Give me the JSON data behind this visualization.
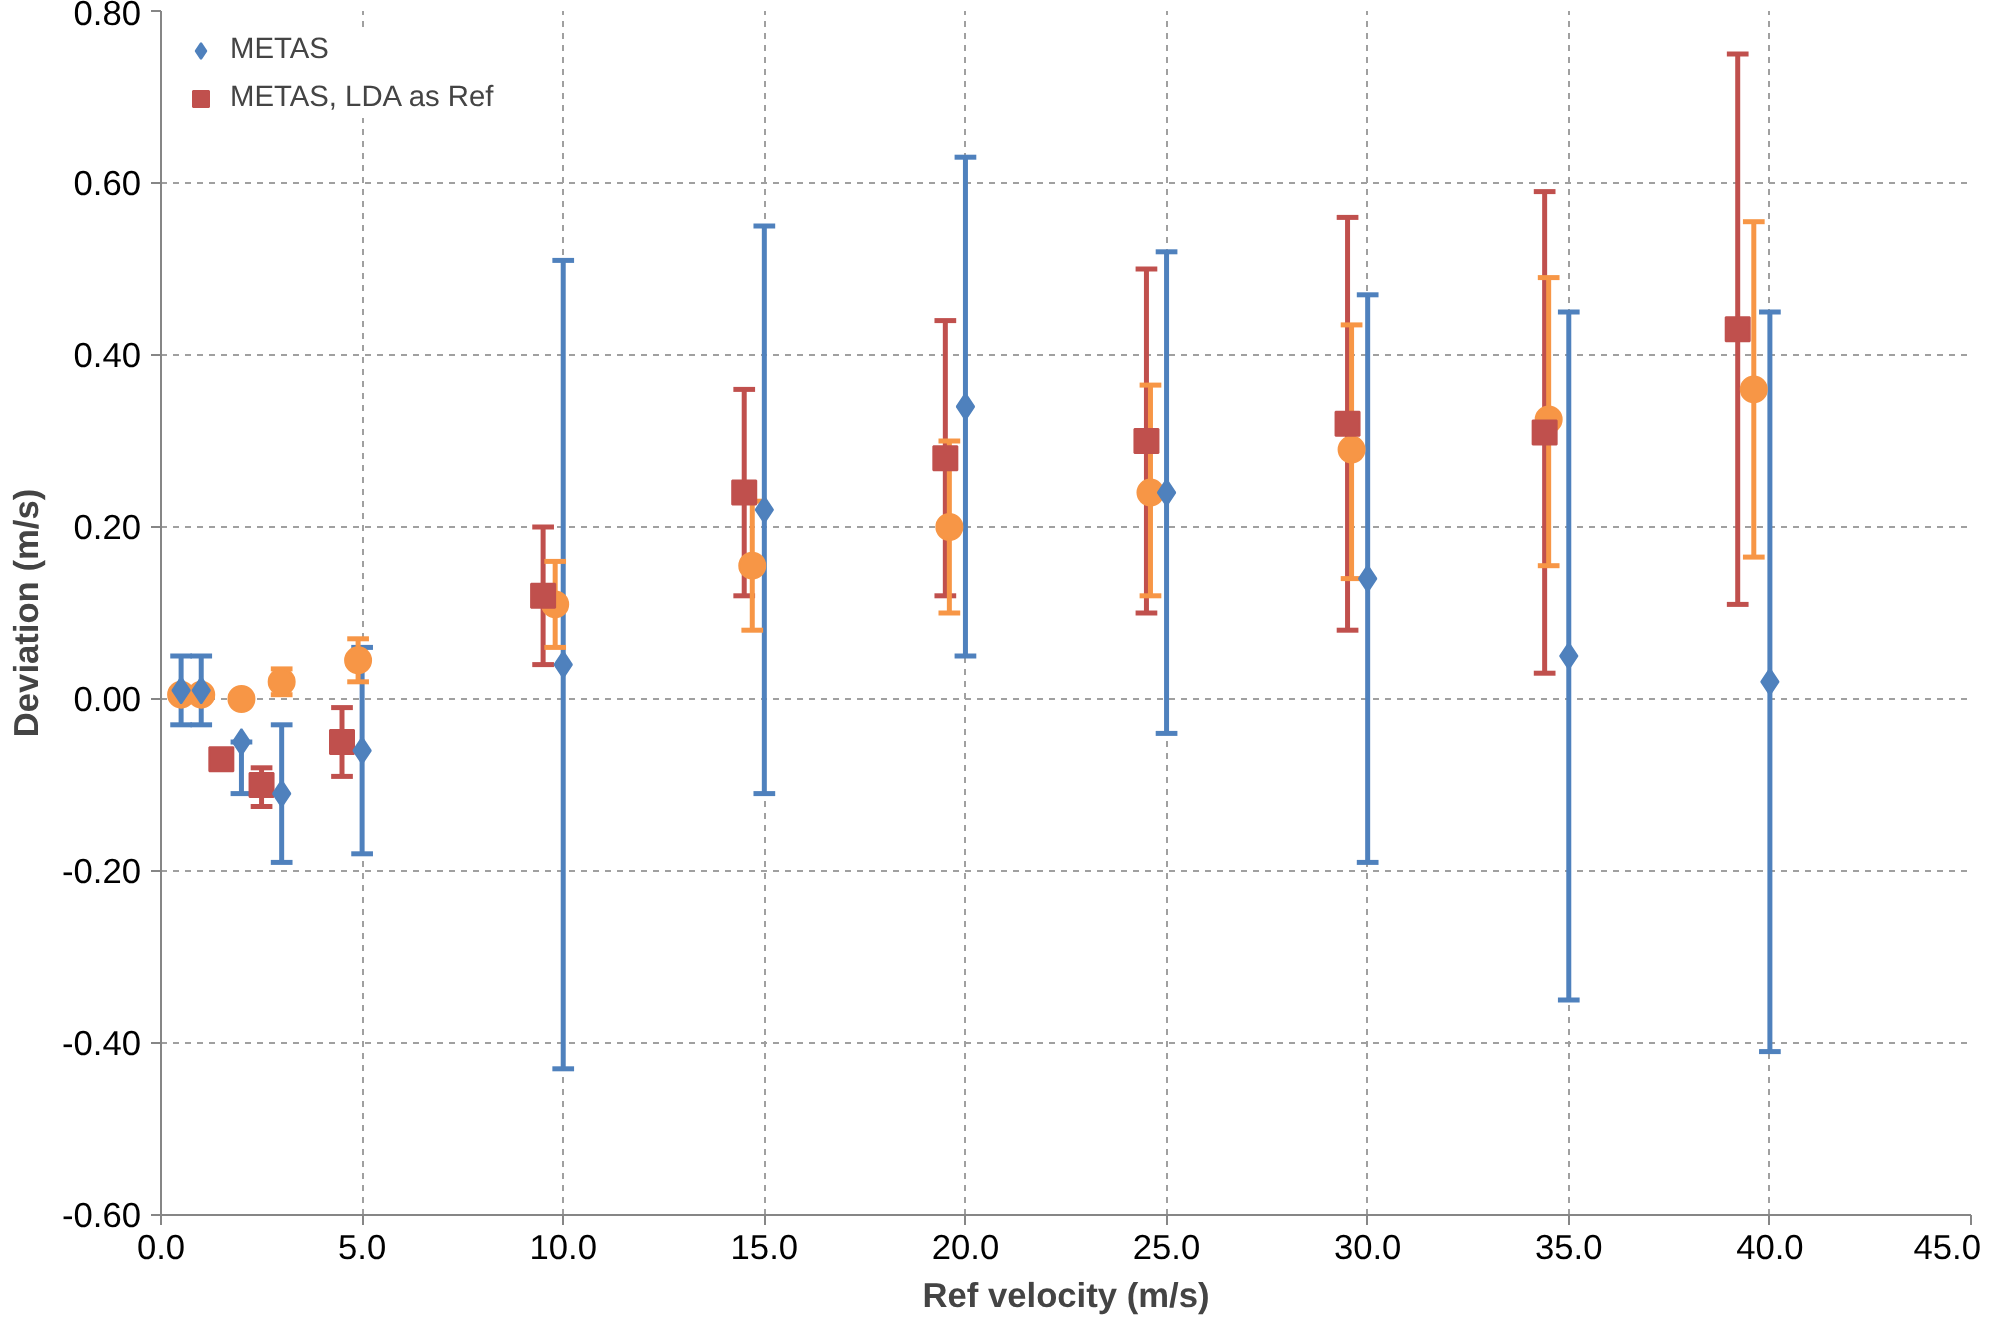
{
  "chart_data": {
    "type": "scatter",
    "xlabel": "Ref velocity (m/s)",
    "ylabel": "Deviation (m/s)",
    "xlim": [
      0,
      45
    ],
    "ylim": [
      -0.6,
      0.8
    ],
    "xticks": [
      {
        "value": 0,
        "label": "0.0"
      },
      {
        "value": 5,
        "label": "5.0"
      },
      {
        "value": 10,
        "label": "10.0"
      },
      {
        "value": 15,
        "label": "15.0"
      },
      {
        "value": 20,
        "label": "20.0"
      },
      {
        "value": 25,
        "label": "25.0"
      },
      {
        "value": 30,
        "label": "30.0"
      },
      {
        "value": 35,
        "label": "35.0"
      },
      {
        "value": 40,
        "label": "40.0"
      },
      {
        "value": 45,
        "label": "45.0"
      }
    ],
    "yticks": [
      {
        "value": -0.6,
        "label": "-0.60"
      },
      {
        "value": -0.4,
        "label": "-0.40"
      },
      {
        "value": -0.2,
        "label": "-0.20"
      },
      {
        "value": 0,
        "label": "0.00"
      },
      {
        "value": 0.2,
        "label": "0.20"
      },
      {
        "value": 0.4,
        "label": "0.40"
      },
      {
        "value": 0.6,
        "label": "0.60"
      },
      {
        "value": 0.8,
        "label": "0.80"
      }
    ],
    "grid": true,
    "legend": "top left",
    "series": [
      {
        "name": "METAS",
        "color": "#4f81bd",
        "marker": "diamond",
        "x": [
          0.5,
          1.0,
          2.0,
          3.0,
          5.0,
          10.0,
          15.0,
          20.0,
          25.0,
          30.0,
          35.0,
          40.0
        ],
        "values": [
          0.01,
          0.01,
          -0.05,
          -0.11,
          -0.06,
          0.04,
          0.22,
          0.34,
          0.24,
          0.14,
          0.05,
          0.02
        ],
        "errors": [
          [
            -0.03,
            0.05
          ],
          [
            -0.03,
            0.05
          ],
          [
            -0.11,
            -0.05
          ],
          [
            -0.19,
            -0.03
          ],
          [
            -0.18,
            0.06
          ],
          [
            -0.43,
            0.51
          ],
          [
            -0.11,
            0.55
          ],
          [
            0.05,
            0.63
          ],
          [
            -0.04,
            0.52
          ],
          [
            -0.19,
            0.47
          ],
          [
            -0.35,
            0.45
          ],
          [
            -0.41,
            0.45
          ]
        ]
      },
      {
        "name": "METAS, LDA as Ref",
        "color": "#c0504d",
        "marker": "square",
        "x": [
          1.5,
          2.5,
          4.5,
          9.5,
          14.5,
          19.5,
          24.5,
          29.5,
          34.4,
          39.2
        ],
        "values": [
          -0.07,
          -0.1,
          -0.05,
          0.12,
          0.24,
          0.28,
          0.3,
          0.32,
          0.31,
          0.43
        ],
        "errors": [
          null,
          [
            -0.125,
            -0.08
          ],
          [
            -0.09,
            -0.01
          ],
          [
            0.04,
            0.2
          ],
          [
            0.12,
            0.36
          ],
          [
            0.12,
            0.44
          ],
          [
            0.1,
            0.5
          ],
          [
            0.08,
            0.56
          ],
          [
            0.03,
            0.59
          ],
          [
            0.11,
            0.75
          ]
        ]
      },
      {
        "color": "#f79646",
        "marker": "circle",
        "x": [
          0.5,
          1.0,
          2.0,
          3.0,
          4.9,
          9.8,
          14.7,
          19.6,
          24.6,
          29.6,
          34.5,
          39.6
        ],
        "values": [
          0.005,
          0.005,
          0.0,
          0.02,
          0.045,
          0.11,
          0.155,
          0.2,
          0.24,
          0.29,
          0.325,
          0.36
        ],
        "errors": [
          null,
          null,
          null,
          [
            0.005,
            0.035
          ],
          [
            0.02,
            0.07
          ],
          [
            0.06,
            0.16
          ],
          [
            0.08,
            0.23
          ],
          [
            0.1,
            0.3
          ],
          [
            0.12,
            0.365
          ],
          [
            0.14,
            0.435
          ],
          [
            0.155,
            0.49
          ],
          [
            0.165,
            0.555
          ]
        ]
      }
    ]
  }
}
